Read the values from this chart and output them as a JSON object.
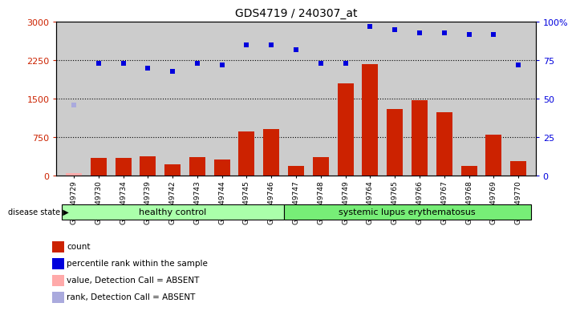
{
  "title": "GDS4719 / 240307_at",
  "samples": [
    "GSM349729",
    "GSM349730",
    "GSM349734",
    "GSM349739",
    "GSM349742",
    "GSM349743",
    "GSM349744",
    "GSM349745",
    "GSM349746",
    "GSM349747",
    "GSM349748",
    "GSM349749",
    "GSM349764",
    "GSM349765",
    "GSM349766",
    "GSM349767",
    "GSM349768",
    "GSM349769",
    "GSM349770"
  ],
  "counts": [
    55,
    350,
    350,
    380,
    220,
    370,
    320,
    860,
    920,
    200,
    360,
    1800,
    2180,
    1310,
    1470,
    1240,
    200,
    800,
    290
  ],
  "percentile_ranks_pct": [
    null,
    73,
    73,
    70,
    68,
    73,
    72,
    85,
    85,
    82,
    73,
    73,
    97,
    95,
    93,
    93,
    92,
    92,
    72
  ],
  "absent_count_val": 55,
  "absent_rank_pct": 46,
  "absent_index": 0,
  "healthy_count": 9,
  "sle_count": 10,
  "ylim_left": [
    0,
    3000
  ],
  "ylim_right": [
    0,
    100
  ],
  "yticks_left": [
    0,
    750,
    1500,
    2250,
    3000
  ],
  "yticks_right": [
    0,
    25,
    50,
    75,
    100
  ],
  "bar_color": "#cc2200",
  "bar_color_absent": "#ffaaaa",
  "dot_color": "#0000dd",
  "dot_color_absent": "#aaaadd",
  "healthy_label": "healthy control",
  "sle_label": "systemic lupus erythematosus",
  "bg_color": "#cccccc",
  "group_healthy_color": "#aaffaa",
  "group_sle_color": "#77ee77",
  "legend_items": [
    {
      "label": "count",
      "color": "#cc2200"
    },
    {
      "label": "percentile rank within the sample",
      "color": "#0000dd"
    },
    {
      "label": "value, Detection Call = ABSENT",
      "color": "#ffaaaa"
    },
    {
      "label": "rank, Detection Call = ABSENT",
      "color": "#aaaadd"
    }
  ]
}
